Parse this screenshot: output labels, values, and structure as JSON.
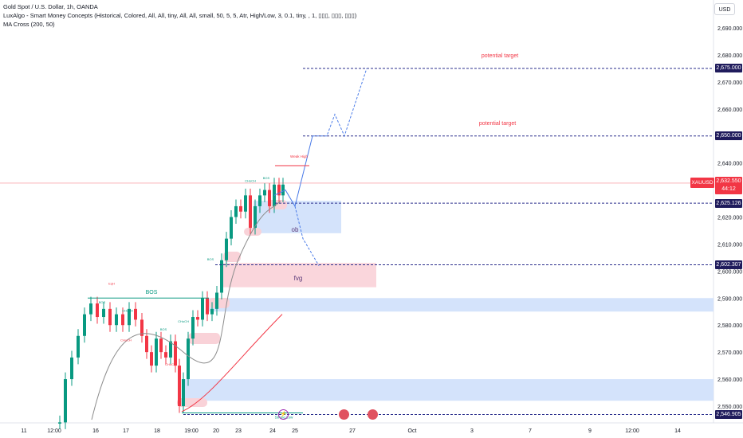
{
  "header": {
    "symbol_line": "Gold Spot / U.S. Dollar, 1h, OANDA",
    "indicator_line": "LuxAlgo - Smart Money Concepts (Historical, Colored, All, All, tiny, All, All, small, 50, 5, 5, Atr, High/Low, 3, 0.1, tiny, , 1, ▯▯▯, ▯▯▯, ▯▯▯)",
    "ma_line": "MA Cross (200, 50)"
  },
  "currency_button": "USD",
  "chart_data": {
    "type": "candlestick",
    "symbol": "XAUUSD",
    "timeframe": "1h",
    "y_axis": {
      "range": [
        2543,
        2698
      ],
      "tick_labels": [
        "2,690.000",
        "2,680.000",
        "2,670.000",
        "2,660.000",
        "2,650.000",
        "2,640.000",
        "2,630.000",
        "2,620.000",
        "2,610.000",
        "2,600.000",
        "2,590.000",
        "2,580.000",
        "2,570.000",
        "2,560.000",
        "2,550.000"
      ],
      "tick_values": [
        2690,
        2680,
        2670,
        2660,
        2650,
        2640,
        2630,
        2620,
        2610,
        2600,
        2590,
        2580,
        2570,
        2560,
        2550
      ]
    },
    "x_axis": {
      "tick_labels": [
        "11",
        "12:00",
        "16",
        "17",
        "18",
        "19:00",
        "20",
        "23",
        "24",
        "25",
        "27",
        "Oct",
        "3",
        "7",
        "9",
        "12:00",
        "14"
      ]
    },
    "last_price": {
      "value": 2632.55,
      "label": "2,632.550",
      "countdown": "44:12",
      "symbol_tag": "XAUUSD"
    },
    "price_labels": [
      {
        "value": 2675.0,
        "label": "2,675.000"
      },
      {
        "value": 2650.0,
        "label": "2,650.000"
      },
      {
        "value": 2625.126,
        "label": "2,625.126"
      },
      {
        "value": 2602.307,
        "label": "2,602.307"
      },
      {
        "value": 2546.905,
        "label": "2,546.905"
      }
    ],
    "annotations": [
      {
        "text": "potential target",
        "value": 2680
      },
      {
        "text": "potential target",
        "value": 2655
      },
      {
        "text": "ob",
        "value": 2615.5
      },
      {
        "text": "fvg",
        "value": 2597.5
      },
      {
        "text": "BOS",
        "value": 2592.5
      }
    ],
    "smc_labels": [
      "BOS",
      "CHoCH",
      "EqH",
      "Weak High",
      "Strong Low"
    ],
    "zones": [
      {
        "type": "order block",
        "from": 2614,
        "to": 2626
      },
      {
        "type": "fvg",
        "from": 2594,
        "to": 2603
      },
      {
        "type": "demand",
        "from": 2585,
        "to": 2590
      },
      {
        "type": "demand",
        "from": 2552,
        "to": 2560
      }
    ],
    "grid": false,
    "legend": "top-left"
  },
  "colors": {
    "bull": "#089981",
    "bear": "#f23645",
    "label_bg": "#1f1b5c",
    "dashed": "#2a2e8c",
    "projection": "#4a7be8",
    "ma200": "#8c8c8c",
    "ma50": "#f23645",
    "zone_blue": "#cfe0fb",
    "zone_pink": "#f9d2d8"
  },
  "event_icons": [
    "flash-icon",
    "us-flag-icon",
    "us-flag-icon"
  ]
}
